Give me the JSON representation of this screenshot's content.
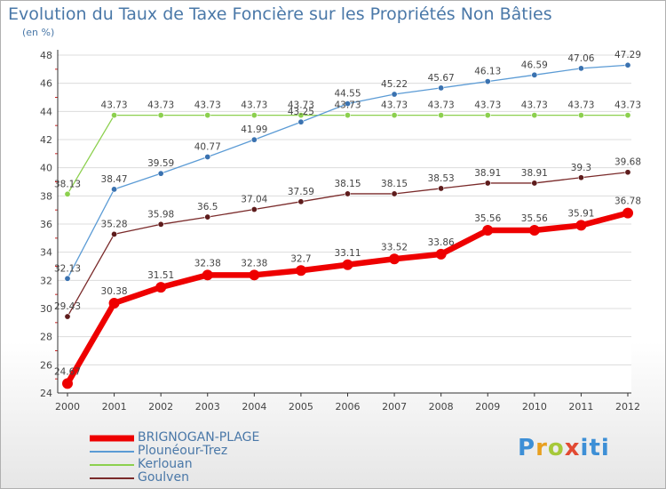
{
  "header": {
    "title": "Evolution du Taux de Taxe Foncière sur les Propriétés Non Bâties",
    "unit": "(en %)"
  },
  "logo": {
    "text": "Proxiti"
  },
  "chart_data": {
    "type": "line",
    "title": "Evolution du Taux de Taxe Foncière sur les Propriétés Non Bâties",
    "ylabel": "(en %)",
    "xlabel": "",
    "x": [
      "2000",
      "2001",
      "2002",
      "2003",
      "2004",
      "2005",
      "2006",
      "2007",
      "2008",
      "2009",
      "2010",
      "2011",
      "2012"
    ],
    "ylim": [
      24,
      48
    ],
    "yticks": [
      24,
      26,
      28,
      30,
      32,
      34,
      36,
      38,
      40,
      42,
      44,
      46,
      48
    ],
    "grid": "horizontal",
    "legend_position": "bottom-left",
    "series": [
      {
        "name": "BRIGNOGAN-PLAGE",
        "color": "#ee0000",
        "width": 6.5,
        "marker": 5.5,
        "values": [
          24.67,
          30.38,
          31.51,
          32.38,
          32.38,
          32.7,
          33.11,
          33.52,
          33.86,
          35.56,
          35.56,
          35.91,
          36.78
        ],
        "labels": [
          "24.67",
          "30.38",
          "31.51",
          "32.38",
          "32.38",
          "32.7",
          "33.11",
          "33.52",
          "33.86",
          "35.56",
          "35.56",
          "35.91",
          "36.78"
        ]
      },
      {
        "name": "Plounéour-Trez",
        "color": "#5b9bd5",
        "dot": "#3a72b0",
        "width": 1.3,
        "marker": 3.2,
        "values": [
          32.13,
          38.47,
          39.59,
          40.77,
          41.99,
          43.25,
          44.55,
          45.22,
          45.67,
          46.13,
          46.59,
          47.06,
          47.29
        ],
        "labels": [
          "32.13",
          "38.47",
          "39.59",
          "40.77",
          "41.99",
          "43.25",
          "44.55",
          "45.22",
          "45.67",
          "46.13",
          "46.59",
          "47.06",
          "47.29"
        ]
      },
      {
        "name": "Kerlouan",
        "color": "#8cd04e",
        "dot": "#8cd04e",
        "width": 1.3,
        "marker": 3.2,
        "values": [
          38.13,
          43.73,
          43.73,
          43.73,
          43.73,
          43.73,
          43.73,
          43.73,
          43.73,
          43.73,
          43.73,
          43.73,
          43.73
        ],
        "labels": [
          "38.13",
          "43.73",
          "43.73",
          "43.73",
          "43.73",
          "43.73",
          "43.73",
          "43.73",
          "43.73",
          "43.73",
          "43.73",
          "43.73",
          "43.73"
        ]
      },
      {
        "name": "Goulven",
        "color": "#7a2a2a",
        "dot": "#5e1c1c",
        "width": 1.3,
        "marker": 3.2,
        "values": [
          29.43,
          35.28,
          35.98,
          36.5,
          37.04,
          37.59,
          38.15,
          38.15,
          38.53,
          38.91,
          38.91,
          39.3,
          39.68
        ],
        "labels": [
          "29.43",
          "35.28",
          "35.98",
          "36.5",
          "37.04",
          "37.59",
          "38.15",
          "38.15",
          "38.53",
          "38.91",
          "38.91",
          "39.3",
          "39.68"
        ]
      }
    ]
  }
}
